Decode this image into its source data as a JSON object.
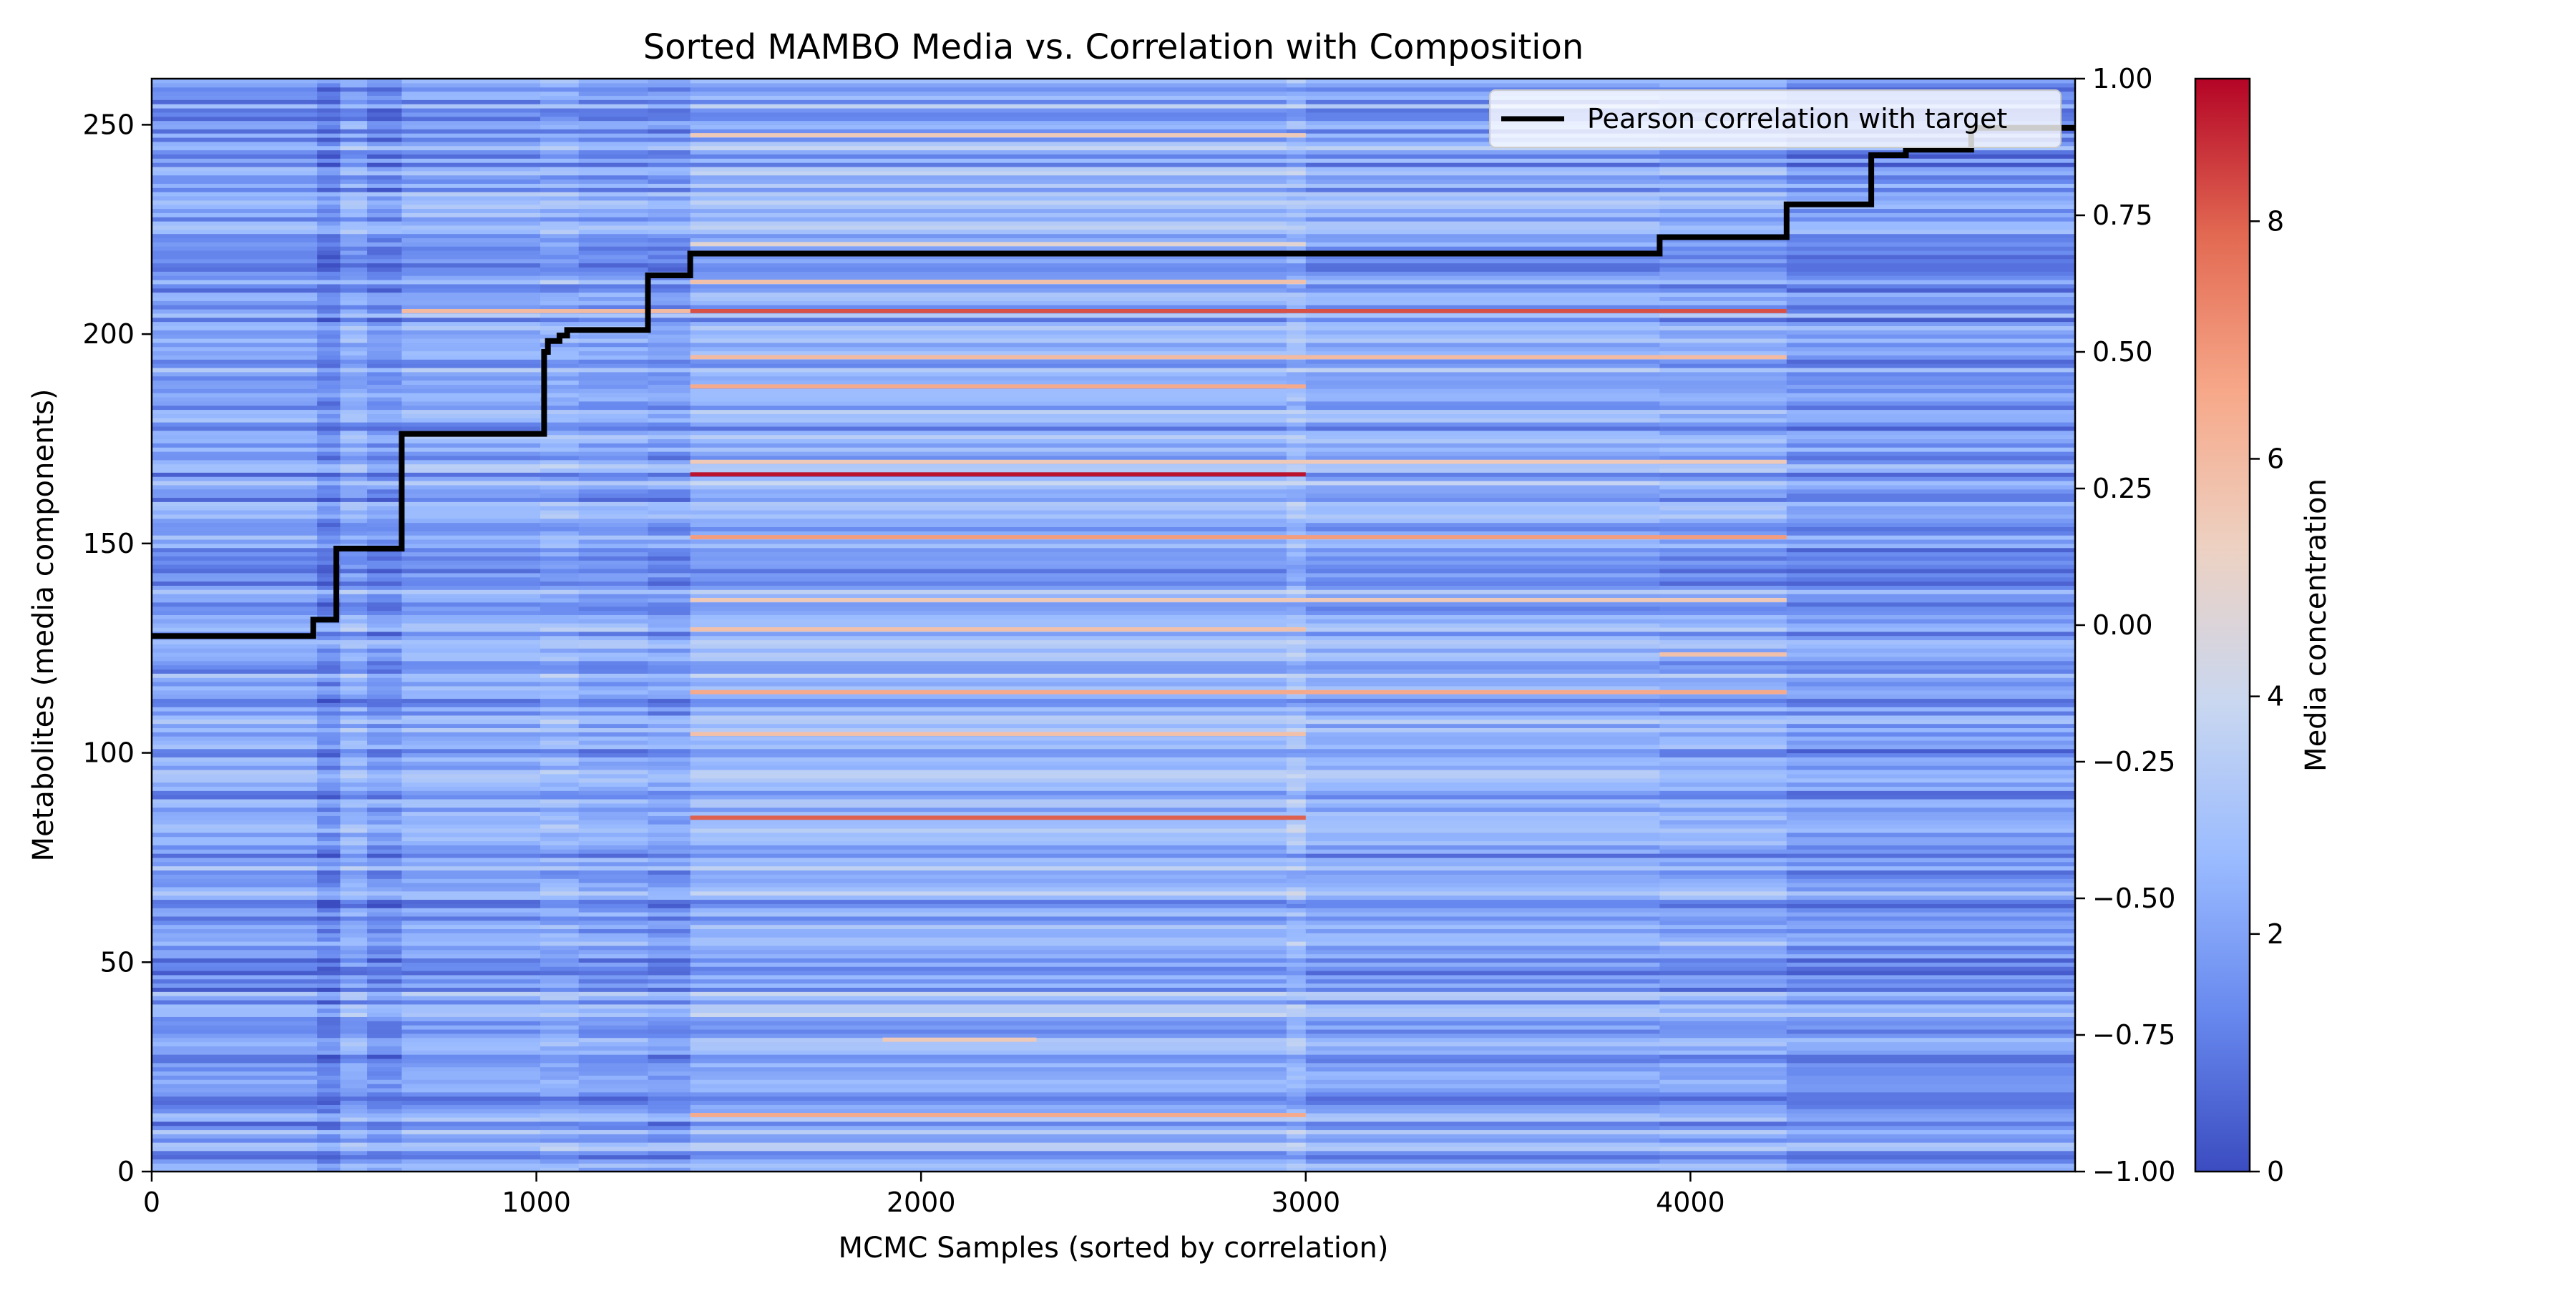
{
  "chart_data": {
    "type": "heatmap",
    "title": "Sorted MAMBO Media vs. Correlation with Composition",
    "xlabel": "MCMC Samples (sorted by correlation)",
    "ylabel": "Metabolites (media components)",
    "y2label": "",
    "colorbar_label": "Media concentration",
    "xlim": [
      0,
      5000
    ],
    "ylim": [
      0,
      261
    ],
    "y2lim": [
      -1.0,
      1.0
    ],
    "colorbar_range": [
      0,
      9.2
    ],
    "colormap": [
      "#3b4cc0",
      "#6788ee",
      "#9abbff",
      "#c9d7f0",
      "#edd1c2",
      "#f7a889",
      "#e26952",
      "#b40426"
    ],
    "x_ticks": [
      0,
      1000,
      2000,
      3000,
      4000
    ],
    "x_tick_labels": [
      "0",
      "1000",
      "2000",
      "3000",
      "4000"
    ],
    "y_ticks": [
      0,
      50,
      100,
      150,
      200,
      250
    ],
    "y_tick_labels": [
      "0",
      "50",
      "100",
      "150",
      "200",
      "250"
    ],
    "y2_ticks": [
      -1.0,
      -0.75,
      -0.5,
      -0.25,
      0.0,
      0.25,
      0.5,
      0.75,
      1.0
    ],
    "y2_tick_labels": [
      "−1.00",
      "−0.75",
      "−0.50",
      "−0.25",
      "0.00",
      "0.25",
      "0.50",
      "0.75",
      "1.00"
    ],
    "colorbar_ticks": [
      0,
      2,
      4,
      6,
      8
    ],
    "colorbar_tick_labels": [
      "0",
      "2",
      "4",
      "6",
      "8"
    ],
    "legend": {
      "position": "top-right",
      "entries": [
        {
          "label": "Pearson correlation with target",
          "color": "#000000"
        }
      ]
    },
    "column_blocks": [
      {
        "x_start": 0,
        "x_end": 430,
        "base": 1.9
      },
      {
        "x_start": 430,
        "x_end": 490,
        "base": 1.3
      },
      {
        "x_start": 490,
        "x_end": 560,
        "base": 2.2
      },
      {
        "x_start": 560,
        "x_end": 650,
        "base": 1.6
      },
      {
        "x_start": 650,
        "x_end": 1010,
        "base": 2.1
      },
      {
        "x_start": 1010,
        "x_end": 1110,
        "base": 2.3
      },
      {
        "x_start": 1110,
        "x_end": 1290,
        "base": 2.0
      },
      {
        "x_start": 1290,
        "x_end": 1400,
        "base": 1.8
      },
      {
        "x_start": 1400,
        "x_end": 2950,
        "base": 2.4
      },
      {
        "x_start": 2950,
        "x_end": 3000,
        "base": 2.7
      },
      {
        "x_start": 3000,
        "x_end": 3920,
        "base": 2.2
      },
      {
        "x_start": 3920,
        "x_end": 4250,
        "base": 2.1
      },
      {
        "x_start": 4250,
        "x_end": 5000,
        "base": 1.7
      }
    ],
    "hot_rows": [
      {
        "y": 13,
        "x_start": 1400,
        "x_end": 3000,
        "value": 6.5
      },
      {
        "y": 31,
        "x_start": 1900,
        "x_end": 2300,
        "value": 5.5
      },
      {
        "y": 84,
        "x_start": 1400,
        "x_end": 3000,
        "value": 8.0
      },
      {
        "y": 104,
        "x_start": 1400,
        "x_end": 3000,
        "value": 5.8
      },
      {
        "y": 114,
        "x_start": 1400,
        "x_end": 4250,
        "value": 6.5
      },
      {
        "y": 123,
        "x_start": 3920,
        "x_end": 4250,
        "value": 5.8
      },
      {
        "y": 129,
        "x_start": 1400,
        "x_end": 3000,
        "value": 5.8
      },
      {
        "y": 136,
        "x_start": 1400,
        "x_end": 4250,
        "value": 5.5
      },
      {
        "y": 151,
        "x_start": 1400,
        "x_end": 4250,
        "value": 6.8
      },
      {
        "y": 166,
        "x_start": 1400,
        "x_end": 3000,
        "value": 9.0
      },
      {
        "y": 169,
        "x_start": 1400,
        "x_end": 4250,
        "value": 5.5
      },
      {
        "y": 187,
        "x_start": 1400,
        "x_end": 3000,
        "value": 6.5
      },
      {
        "y": 194,
        "x_start": 1400,
        "x_end": 4250,
        "value": 6.0
      },
      {
        "y": 205,
        "x_start": 1400,
        "x_end": 4250,
        "value": 8.2
      },
      {
        "y": 205,
        "x_start": 650,
        "x_end": 1400,
        "value": 6.0
      },
      {
        "y": 212,
        "x_start": 1400,
        "x_end": 3000,
        "value": 5.8
      },
      {
        "y": 221,
        "x_start": 1400,
        "x_end": 3000,
        "value": 4.8
      },
      {
        "y": 247,
        "x_start": 1400,
        "x_end": 3000,
        "value": 5.5
      }
    ],
    "series": [
      {
        "name": "Pearson correlation with target",
        "type": "step-line",
        "axis": "right",
        "color": "#000000",
        "points": [
          [
            0,
            -0.02
          ],
          [
            420,
            -0.02
          ],
          [
            420,
            0.01
          ],
          [
            480,
            0.01
          ],
          [
            480,
            0.14
          ],
          [
            560,
            0.14
          ],
          [
            560,
            0.14
          ],
          [
            650,
            0.14
          ],
          [
            650,
            0.35
          ],
          [
            1020,
            0.35
          ],
          [
            1020,
            0.5
          ],
          [
            1030,
            0.5
          ],
          [
            1030,
            0.52
          ],
          [
            1060,
            0.52
          ],
          [
            1060,
            0.53
          ],
          [
            1080,
            0.53
          ],
          [
            1080,
            0.54
          ],
          [
            1290,
            0.54
          ],
          [
            1290,
            0.64
          ],
          [
            1400,
            0.64
          ],
          [
            1400,
            0.68
          ],
          [
            3920,
            0.68
          ],
          [
            3920,
            0.71
          ],
          [
            4250,
            0.71
          ],
          [
            4250,
            0.77
          ],
          [
            4470,
            0.77
          ],
          [
            4470,
            0.86
          ],
          [
            4560,
            0.86
          ],
          [
            4560,
            0.87
          ],
          [
            4730,
            0.87
          ],
          [
            4730,
            0.91
          ],
          [
            5000,
            0.91
          ]
        ]
      }
    ]
  }
}
